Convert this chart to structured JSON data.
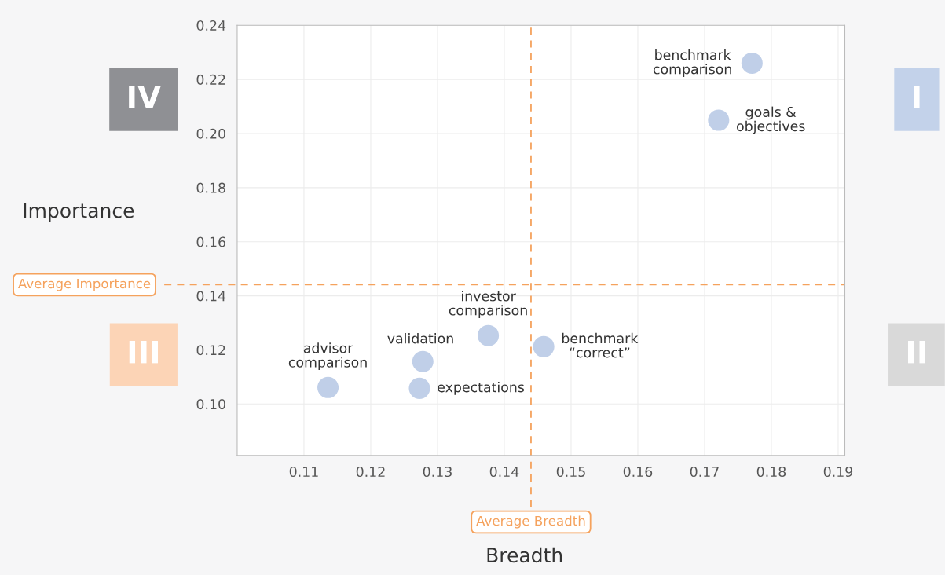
{
  "chart_data": {
    "type": "scatter",
    "xlabel": "Breadth",
    "ylabel": "Importance",
    "x": [
      0.1771,
      0.1721,
      0.1376,
      0.1459,
      0.1278,
      0.1273,
      0.1136
    ],
    "series": [
      {
        "color": "#bdcce7",
        "values": [
          0.226,
          0.2049,
          0.1253,
          0.1212,
          0.1157,
          0.1058,
          0.1061
        ]
      }
    ],
    "xlim": [
      0.1,
      0.191
    ],
    "ylim": [
      0.081,
      0.24
    ],
    "xticks": [
      0.11,
      0.12,
      0.13,
      0.14,
      0.15,
      0.16,
      0.17,
      0.18,
      0.19
    ],
    "yticks": [
      {
        "value": 0.1,
        "label": "0.10"
      },
      0.12,
      0.14,
      0.16,
      0.18,
      {
        "value": 0.2,
        "label": "0.20"
      },
      0.22,
      0.24
    ],
    "grid": true,
    "marker": "circle",
    "ref_lines": [
      {
        "axis": "x",
        "value": 0.144,
        "label": "Average Breadth",
        "color": "#f5a25d",
        "line_style": "dashed"
      },
      {
        "axis": "y",
        "value": 0.1441,
        "label": "Average Importance",
        "color": "#f5a25d",
        "line_style": "dashed"
      }
    ],
    "annotations": [
      {
        "text": "benchmark\ncomparison",
        "x": 0.1771,
        "y": 0.226
      },
      {
        "text": "goals &\nobjectives",
        "x": 0.1721,
        "y": 0.2049
      },
      {
        "text": "investor\ncomparison",
        "x": 0.1376,
        "y": 0.1253
      },
      {
        "text": "benchmark\n“correct”",
        "x": 0.1459,
        "y": 0.1212
      },
      {
        "text": "validation",
        "x": 0.1278,
        "y": 0.1157
      },
      {
        "text": "expectations",
        "x": 0.1273,
        "y": 0.1058
      },
      {
        "text": "advisor\ncomparison",
        "x": 0.1136,
        "y": 0.1061
      },
      "I",
      "II",
      "III",
      "IV"
    ]
  }
}
